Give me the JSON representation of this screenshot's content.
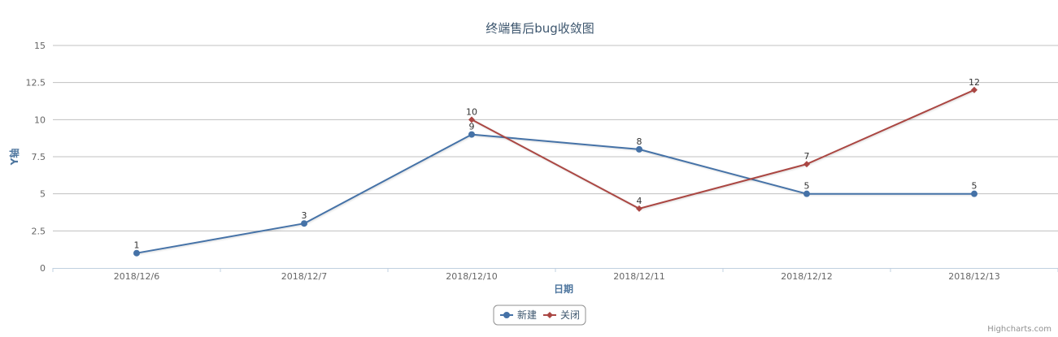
{
  "chart_data": {
    "type": "line",
    "title": "终端售后bug收敛图",
    "xlabel": "日期",
    "ylabel": "Y轴",
    "categories": [
      "2018/12/6",
      "2018/12/7",
      "2018/12/10",
      "2018/12/11",
      "2018/12/12",
      "2018/12/13"
    ],
    "ylim": [
      0,
      15
    ],
    "yticks": [
      "0",
      "2.5",
      "5",
      "7.5",
      "10",
      "12.5",
      "15"
    ],
    "grid": true,
    "legend_position": "bottom-center",
    "series": [
      {
        "name": "新建",
        "color": "#4572A7",
        "marker": "circle",
        "values": [
          1,
          3,
          9,
          8,
          5,
          5
        ],
        "labels": [
          "1",
          "3",
          "9",
          "8",
          "5",
          "5"
        ]
      },
      {
        "name": "关闭",
        "color": "#AA4643",
        "marker": "diamond",
        "values": [
          null,
          null,
          10,
          4,
          7,
          12
        ],
        "labels": [
          null,
          null,
          "10",
          "4",
          "7",
          "12"
        ]
      }
    ]
  },
  "credits": "Highcharts.com"
}
